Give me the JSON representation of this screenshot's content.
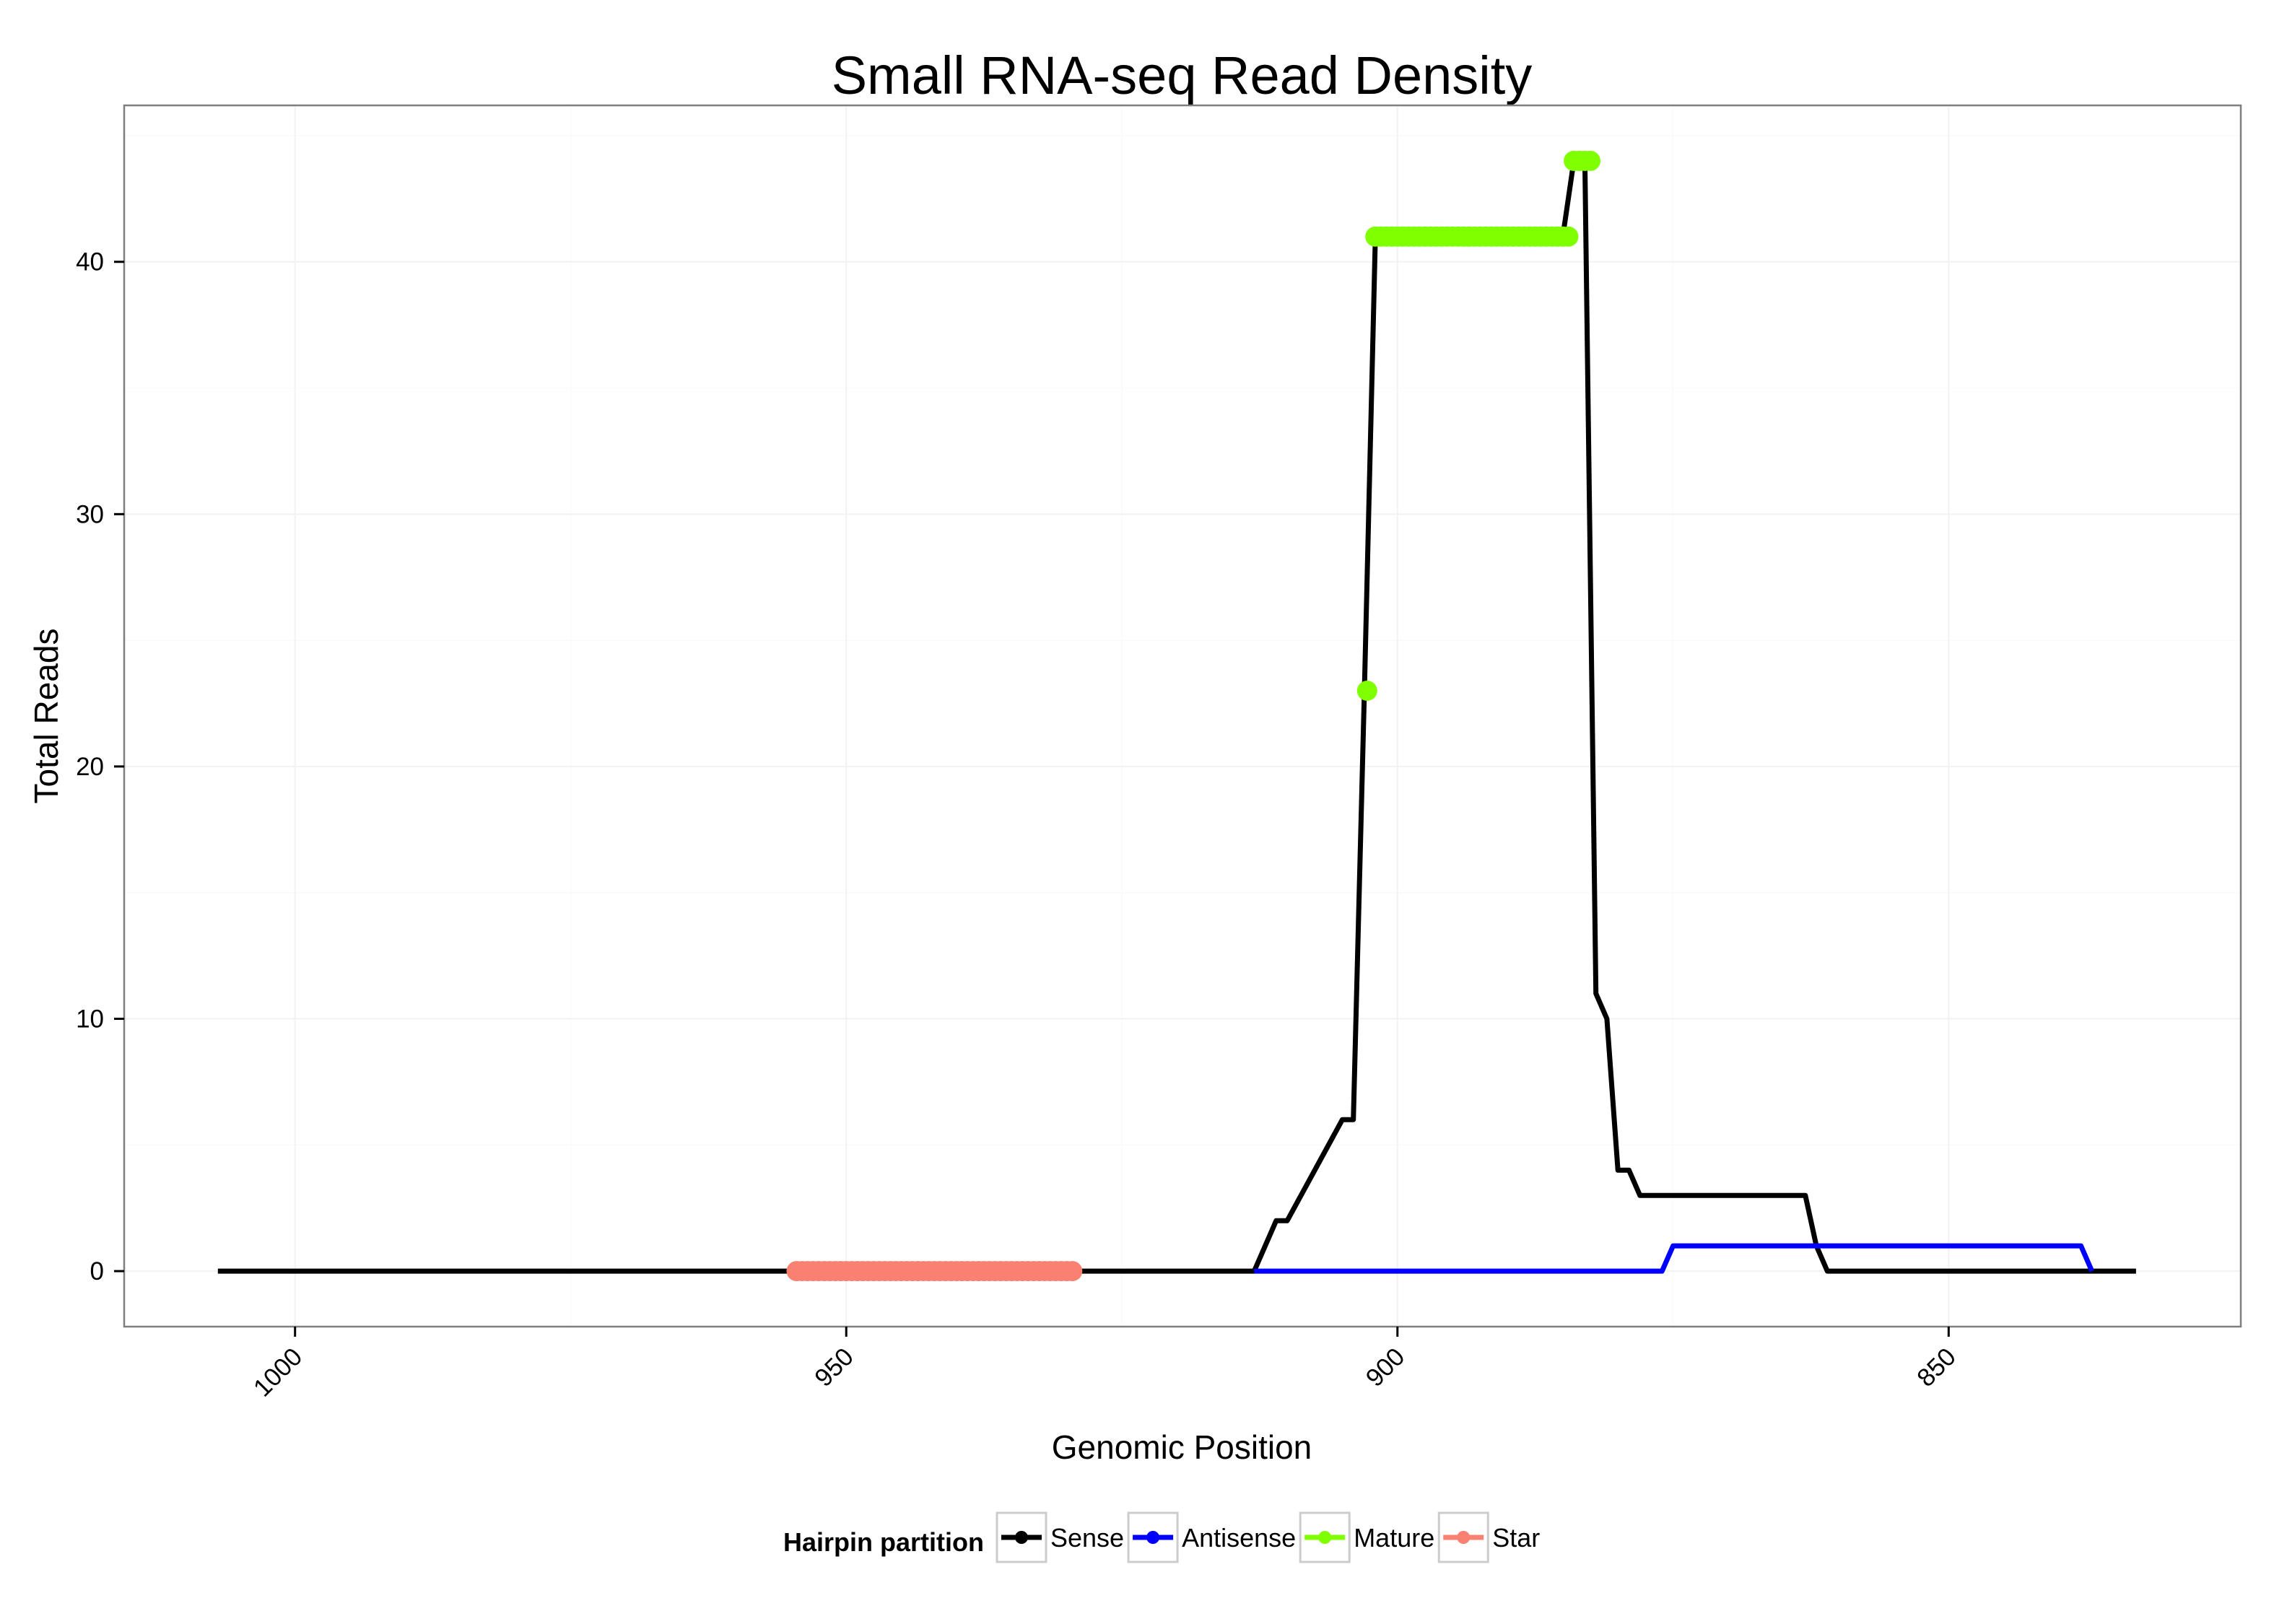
{
  "chart_data": {
    "type": "line",
    "title": "Small RNA-seq Read Density",
    "xlabel": "Genomic Position",
    "ylabel": "Total Reads",
    "x_reversed": true,
    "xlim": [
      1015.5,
      823.5
    ],
    "ylim": [
      -2.2,
      46.2
    ],
    "x_ticks": [
      1000,
      950,
      900,
      850
    ],
    "x_tick_labels": [
      "1000",
      "950",
      "900",
      "850"
    ],
    "y_ticks": [
      0,
      10,
      20,
      30,
      40
    ],
    "y_tick_labels": [
      "0",
      "10",
      "20",
      "30",
      "40"
    ],
    "grid": true,
    "legend": {
      "title": "Hairpin partition",
      "position": "bottom",
      "entries": [
        "Sense",
        "Antisense",
        "Mature",
        "Star"
      ]
    },
    "series": [
      {
        "name": "Sense",
        "color": "#000000",
        "kind": "line",
        "x": [
          1007,
          913,
          911,
          910,
          905,
          904,
          903,
          902,
          901,
          900,
          898,
          897,
          896,
          895,
          894,
          893,
          892,
          891,
          890,
          889,
          888,
          887,
          886,
          885,
          884,
          883,
          882,
          881,
          880,
          879,
          878,
          877,
          876,
          875,
          874,
          873,
          872,
          871,
          870,
          869,
          868,
          867,
          866,
          865,
          864,
          863,
          862,
          861,
          860,
          859,
          858,
          857,
          856,
          855,
          854,
          853,
          852,
          851,
          850,
          849,
          848,
          847,
          846,
          845,
          844,
          843,
          842,
          841,
          840,
          839,
          838,
          837,
          836,
          835,
          834,
          833
        ],
        "y": [
          0,
          0,
          2,
          2,
          6,
          6,
          23,
          41,
          41,
          41,
          41,
          41,
          41,
          41,
          41,
          41,
          41,
          41,
          41,
          41,
          41,
          41,
          41,
          41,
          44,
          44,
          11,
          10,
          4,
          4,
          3,
          3,
          3,
          3,
          3,
          3,
          3,
          3,
          3,
          3,
          3,
          3,
          3,
          3,
          3,
          3,
          1,
          0,
          0,
          0,
          0,
          0,
          0,
          0,
          0,
          0,
          0,
          0,
          0,
          0,
          0,
          0,
          0,
          0,
          0,
          0,
          0,
          0,
          0,
          0,
          0,
          0,
          0,
          0,
          0,
          0
        ]
      },
      {
        "name": "Antisense",
        "color": "#0000ff",
        "kind": "line",
        "x": [
          913,
          876,
          875,
          872,
          851,
          850,
          849,
          848,
          847,
          846,
          845,
          844,
          843,
          842,
          841,
          840,
          839,
          838,
          837
        ],
        "y": [
          0,
          0,
          1,
          1,
          1,
          1,
          1,
          1,
          1,
          1,
          1,
          1,
          1,
          1,
          1,
          1,
          1,
          1,
          0
        ]
      },
      {
        "name": "Mature",
        "color": "#7fff00",
        "kind": "points",
        "x": [
          902.75,
          902,
          901.5,
          901,
          900.5,
          900,
          899.5,
          899,
          898.5,
          898,
          897.5,
          897,
          896.5,
          896,
          895.5,
          895,
          894.5,
          894,
          893.5,
          893,
          892.5,
          892,
          891.5,
          891,
          890.5,
          890,
          889.5,
          889,
          888.5,
          888,
          887.5,
          887,
          886.5,
          886,
          885.5,
          885,
          884.5,
          884,
          883.5,
          883.5,
          883,
          882.5
        ],
        "y": [
          23,
          41,
          41,
          41,
          41,
          41,
          41,
          41,
          41,
          41,
          41,
          41,
          41,
          41,
          41,
          41,
          41,
          41,
          41,
          41,
          41,
          41,
          41,
          41,
          41,
          41,
          41,
          41,
          41,
          41,
          41,
          41,
          41,
          41,
          41,
          41,
          41,
          44,
          44,
          44,
          44,
          44
        ]
      },
      {
        "name": "Star",
        "color": "#fa8072",
        "kind": "points",
        "x": [
          954.5,
          954,
          953.5,
          953,
          952.5,
          952,
          951.5,
          951,
          950.5,
          950,
          949.5,
          949,
          948.5,
          948,
          947.5,
          947,
          946.5,
          946,
          945.5,
          945,
          944.5,
          944,
          943.5,
          943,
          942.5,
          942,
          941.5,
          941,
          940.5,
          940,
          939.5,
          939,
          938.5,
          938,
          937.5,
          937,
          936.5,
          936,
          935.5,
          935,
          934.5,
          934,
          933.5,
          933,
          932.5,
          932,
          931.5,
          931,
          930.5,
          930,
          929.5
        ],
        "y": [
          0,
          0,
          0,
          0,
          0,
          0,
          0,
          0,
          0,
          0,
          0,
          0,
          0,
          0,
          0,
          0,
          0,
          0,
          0,
          0,
          0,
          0,
          0,
          0,
          0,
          0,
          0,
          0,
          0,
          0,
          0,
          0,
          0,
          0,
          0,
          0,
          0,
          0,
          0,
          0,
          0,
          0,
          0,
          0,
          0,
          0,
          0,
          0,
          0,
          0,
          0
        ]
      }
    ]
  }
}
